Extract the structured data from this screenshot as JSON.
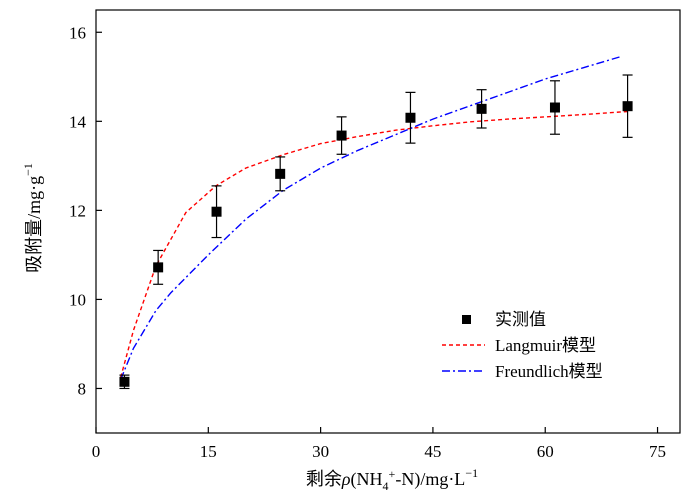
{
  "chart_data": {
    "type": "scatter",
    "xlabel": "剩余ρ(NH4+-N)/mg·L−1",
    "xlabel_parts": {
      "prefix": "剩余",
      "rho": "ρ",
      "open": "(NH",
      "sub": "4",
      "sup": "+",
      "rest": "-N)/mg·L",
      "sup2": "−1"
    },
    "ylabel": "吸附量/mg·g−1",
    "ylabel_parts": {
      "main": "吸附量/mg·g",
      "sup": "−1"
    },
    "xlim": [
      0,
      78
    ],
    "ylim": [
      7,
      16.5
    ],
    "xticks": [
      0,
      15,
      30,
      45,
      60,
      75
    ],
    "yticks": [
      8,
      10,
      12,
      14,
      16
    ],
    "legend_position": "lower-right",
    "series": [
      {
        "name": "实测值",
        "kind": "points_with_errorbars",
        "color": "#000000",
        "x": [
          3.8,
          8.3,
          16.1,
          24.6,
          32.8,
          42.0,
          51.5,
          61.3,
          71.0
        ],
        "y": [
          8.15,
          10.72,
          11.97,
          12.82,
          13.68,
          14.08,
          14.28,
          14.31,
          14.34
        ],
        "err": [
          0.15,
          0.38,
          0.58,
          0.38,
          0.42,
          0.57,
          0.43,
          0.6,
          0.7
        ]
      },
      {
        "name": "Langmuir模型",
        "kind": "curve",
        "color": "#ff0000",
        "dash": "4,3",
        "x": [
          3.3,
          5,
          8,
          12,
          16,
          20,
          25,
          30,
          35,
          40,
          45,
          50,
          55,
          60,
          65,
          71
        ],
        "y": [
          8.25,
          9.3,
          10.75,
          11.95,
          12.55,
          12.95,
          13.25,
          13.5,
          13.66,
          13.8,
          13.9,
          13.99,
          14.05,
          14.1,
          14.15,
          14.22
        ]
      },
      {
        "name": "Freundlich模型",
        "kind": "curve",
        "color": "#0000ff",
        "dash": "8,3,2,3",
        "x": [
          3.3,
          5,
          8,
          10,
          15,
          20,
          25,
          30,
          35,
          40,
          45,
          50,
          55,
          60,
          65,
          70
        ],
        "y": [
          8.2,
          8.9,
          9.75,
          10.15,
          11.0,
          11.8,
          12.45,
          12.95,
          13.35,
          13.7,
          14.05,
          14.35,
          14.65,
          14.95,
          15.2,
          15.45
        ]
      }
    ]
  }
}
